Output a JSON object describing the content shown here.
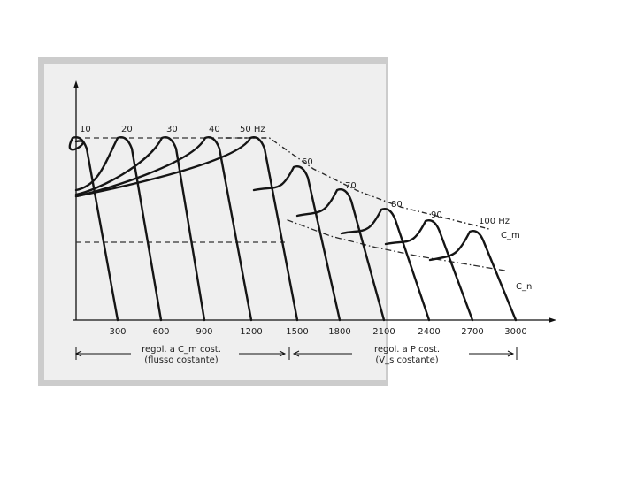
{
  "chart_data": {
    "type": "line",
    "x_tick_labels": [
      "300",
      "600",
      "900",
      "1200",
      "1500",
      "1800",
      "2100",
      "2400",
      "2700",
      "3000"
    ],
    "frequency_labels": [
      "10",
      "20",
      "30",
      "40",
      "50 Hz",
      "60",
      "70",
      "80",
      "90",
      "100 Hz"
    ],
    "x": [
      300,
      600,
      900,
      1200,
      1500,
      1800,
      2100,
      2400,
      2700,
      3000
    ],
    "series": [
      {
        "name": "C_m",
        "values": [
          100,
          100,
          100,
          100,
          100,
          83,
          71,
          62,
          56,
          50
        ]
      },
      {
        "name": "C_n",
        "values": [
          55,
          55,
          55,
          55,
          55,
          46,
          40,
          35,
          31,
          27
        ]
      }
    ],
    "region_labels": [
      {
        "line1": "regol. a C_m cost.",
        "line2": "(flusso costante)"
      },
      {
        "line1": "regol. a P cost.",
        "line2": "(V_s costante)"
      }
    ],
    "curve_labels": [
      "C_m",
      "C_n"
    ]
  }
}
